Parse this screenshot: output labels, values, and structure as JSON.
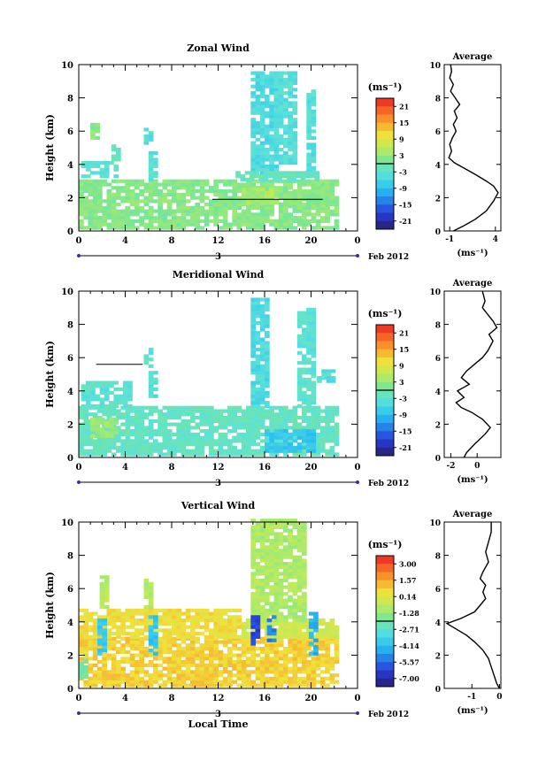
{
  "chart_data": [
    {
      "type": "heatmap",
      "title": "Zonal Wind",
      "ylabel": "Height (km)",
      "xlim": [
        0,
        24
      ],
      "ylim": [
        0,
        10
      ],
      "x_ticks": [
        "0",
        "4",
        "8",
        "12",
        "16",
        "20",
        "0"
      ],
      "y_ticks": [
        "0",
        "2",
        "4",
        "6",
        "8",
        "10"
      ],
      "date_label": "3",
      "month_label": "Feb 2012",
      "colorbar": {
        "unit": "(ms⁻¹)",
        "ticks": [
          "21",
          "15",
          "9",
          "3",
          "-3",
          "-9",
          "-15",
          "-21"
        ],
        "range": [
          -24,
          24
        ]
      },
      "patches": [
        {
          "x0": 0,
          "x1": 22,
          "y0": 0.1,
          "y1": 3.0,
          "v": 2
        },
        {
          "x0": 0.2,
          "x1": 3,
          "y0": 3.2,
          "y1": 4.2,
          "v": -3
        },
        {
          "x0": 1,
          "x1": 1.6,
          "y0": 5.5,
          "y1": 6.5,
          "v": 2
        },
        {
          "x0": 2.8,
          "x1": 3.2,
          "y0": 4.2,
          "y1": 5.2,
          "v": -2
        },
        {
          "x0": 5.6,
          "x1": 6.2,
          "y0": 5.2,
          "y1": 6.2,
          "v": -4
        },
        {
          "x0": 6.0,
          "x1": 6.8,
          "y0": 3.0,
          "y1": 4.8,
          "v": -3
        },
        {
          "x0": 14.8,
          "x1": 16.8,
          "y0": 3.4,
          "y1": 9.5,
          "v": -5
        },
        {
          "x0": 16.8,
          "x1": 18.6,
          "y0": 4.0,
          "y1": 9.5,
          "v": -4
        },
        {
          "x0": 19.6,
          "x1": 20.4,
          "y0": 3.5,
          "y1": 8.5,
          "v": -4
        },
        {
          "x0": 14.0,
          "x1": 17.0,
          "y0": 1.6,
          "y1": 2.6,
          "v": 4
        },
        {
          "x0": 18.0,
          "x1": 21.0,
          "y0": 1.4,
          "y1": 2.4,
          "v": 2
        },
        {
          "x0": 13.5,
          "x1": 20.5,
          "y0": 3.0,
          "y1": 3.6,
          "v": -2
        }
      ],
      "contour": {
        "x0": 11.5,
        "x1": 21.0,
        "y": 1.9
      },
      "avg_profile": {
        "title": "Average",
        "xlabel": "(ms⁻¹)",
        "x_ticks": [
          "-1",
          "4"
        ],
        "xlim": [
          -1.6,
          4.6
        ],
        "y_ticks": [
          "0",
          "2",
          "4",
          "6",
          "8",
          "10"
        ],
        "points": [
          [
            -0.6,
            0
          ],
          [
            0.5,
            0.3
          ],
          [
            1.8,
            0.7
          ],
          [
            3.0,
            1.2
          ],
          [
            3.8,
            1.8
          ],
          [
            4.3,
            2.3
          ],
          [
            3.8,
            2.7
          ],
          [
            3.0,
            3.0
          ],
          [
            1.8,
            3.4
          ],
          [
            0.5,
            3.8
          ],
          [
            -0.5,
            4.1
          ],
          [
            -1.1,
            4.4
          ],
          [
            -0.8,
            4.8
          ],
          [
            -1.0,
            5.2
          ],
          [
            -0.7,
            5.6
          ],
          [
            -0.3,
            6.0
          ],
          [
            -0.6,
            6.4
          ],
          [
            -0.2,
            6.8
          ],
          [
            -0.5,
            7.2
          ],
          [
            0.1,
            7.6
          ],
          [
            -0.4,
            8.0
          ],
          [
            -0.9,
            8.4
          ],
          [
            -0.6,
            8.8
          ],
          [
            -1.0,
            9.2
          ],
          [
            -0.8,
            9.6
          ],
          [
            -0.9,
            10
          ]
        ]
      }
    },
    {
      "type": "heatmap",
      "title": "Meridional Wind",
      "ylabel": "Height (km)",
      "xlim": [
        0,
        24
      ],
      "ylim": [
        0,
        10
      ],
      "x_ticks": [
        "0",
        "4",
        "8",
        "12",
        "16",
        "20",
        "0"
      ],
      "y_ticks": [
        "0",
        "2",
        "4",
        "6",
        "8",
        "10"
      ],
      "date_label": "3",
      "month_label": "Feb 2012",
      "colorbar": {
        "unit": "(ms⁻¹)",
        "ticks": [
          "21",
          "15",
          "9",
          "3",
          "-3",
          "-9",
          "-15",
          "-21"
        ],
        "range": [
          -24,
          24
        ]
      },
      "patches": [
        {
          "x0": 0,
          "x1": 22,
          "y0": 0.1,
          "y1": 3.0,
          "v": -2
        },
        {
          "x0": 0.2,
          "x1": 4.5,
          "y0": 3.0,
          "y1": 4.6,
          "v": -3
        },
        {
          "x0": 5.6,
          "x1": 6.2,
          "y0": 5.4,
          "y1": 6.6,
          "v": -3
        },
        {
          "x0": 6.0,
          "x1": 6.8,
          "y0": 3.6,
          "y1": 5.2,
          "v": -4
        },
        {
          "x0": 14.8,
          "x1": 16.4,
          "y0": 3.0,
          "y1": 9.5,
          "v": -5
        },
        {
          "x0": 18.8,
          "x1": 20.2,
          "y0": 3.0,
          "y1": 9.0,
          "v": -3
        },
        {
          "x0": 16.0,
          "x1": 20.0,
          "y0": 0.3,
          "y1": 1.5,
          "v": -8
        },
        {
          "x0": 1.0,
          "x1": 3.0,
          "y0": 1.2,
          "y1": 2.2,
          "v": 3
        },
        {
          "x0": 20.5,
          "x1": 22,
          "y0": 4.5,
          "y1": 5.2,
          "v": -4
        }
      ],
      "contour": {
        "x0": 1.5,
        "x1": 5.5,
        "y": 5.6
      },
      "avg_profile": {
        "title": "Average",
        "xlabel": "(ms⁻¹)",
        "x_ticks": [
          "-2",
          "0"
        ],
        "xlim": [
          -2.5,
          1.8
        ],
        "y_ticks": [
          "0",
          "2",
          "4",
          "6",
          "8",
          "10"
        ],
        "points": [
          [
            -1.0,
            0
          ],
          [
            -0.8,
            0.3
          ],
          [
            -0.2,
            0.8
          ],
          [
            0.6,
            1.4
          ],
          [
            1.0,
            1.8
          ],
          [
            0.4,
            2.3
          ],
          [
            -0.4,
            2.7
          ],
          [
            -1.2,
            3.0
          ],
          [
            -1.6,
            3.3
          ],
          [
            -1.0,
            3.6
          ],
          [
            -1.5,
            4.0
          ],
          [
            -0.6,
            4.4
          ],
          [
            -1.2,
            4.8
          ],
          [
            -0.8,
            5.2
          ],
          [
            -0.2,
            5.6
          ],
          [
            0.4,
            6.0
          ],
          [
            0.8,
            6.4
          ],
          [
            1.2,
            7.0
          ],
          [
            0.9,
            7.4
          ],
          [
            1.5,
            7.8
          ],
          [
            1.2,
            8.2
          ],
          [
            0.8,
            8.6
          ],
          [
            0.4,
            9.0
          ],
          [
            0.6,
            9.4
          ],
          [
            0.4,
            10
          ]
        ]
      }
    },
    {
      "type": "heatmap",
      "title": "Vertical Wind",
      "ylabel": "Height (km)",
      "xlabel": "Local Time",
      "xlim": [
        0,
        24
      ],
      "ylim": [
        0,
        10
      ],
      "x_ticks": [
        "0",
        "4",
        "8",
        "12",
        "16",
        "20",
        "0"
      ],
      "y_ticks": [
        "0",
        "2",
        "4",
        "6",
        "8",
        "10"
      ],
      "date_label": "3",
      "month_label": "Feb 2012",
      "colorbar": {
        "unit": "(ms⁻¹)",
        "ticks": [
          "3.00",
          "1.57",
          "0.14",
          "-1.28",
          "-2.71",
          "-4.14",
          "-5.57",
          "-7.00"
        ],
        "range": [
          -7.7,
          3.7
        ]
      },
      "patches": [
        {
          "x0": 0,
          "x1": 22,
          "y0": 0.1,
          "y1": 3.0,
          "v": 0.8
        },
        {
          "x0": 0,
          "x1": 14,
          "y0": 3.0,
          "y1": 4.8,
          "v": 0.5
        },
        {
          "x0": 14.0,
          "x1": 22,
          "y0": 3.0,
          "y1": 4.2,
          "v": -0.3
        },
        {
          "x0": 14.8,
          "x1": 19.5,
          "y0": 4.0,
          "y1": 10,
          "v": -0.9
        },
        {
          "x0": 1.8,
          "x1": 2.4,
          "y0": 4.8,
          "y1": 6.8,
          "v": -0.7
        },
        {
          "x0": 5.6,
          "x1": 6.2,
          "y0": 4.8,
          "y1": 6.5,
          "v": -0.8
        },
        {
          "x0": 1.6,
          "x1": 2.2,
          "y0": 2.0,
          "y1": 4.4,
          "v": -3.8
        },
        {
          "x0": 6.0,
          "x1": 6.6,
          "y0": 2.0,
          "y1": 4.4,
          "v": -4.0
        },
        {
          "x0": 14.8,
          "x1": 15.4,
          "y0": 2.6,
          "y1": 4.4,
          "v": -6.3
        },
        {
          "x0": 16.2,
          "x1": 16.8,
          "y0": 2.8,
          "y1": 4.4,
          "v": -5.2
        },
        {
          "x0": 19.8,
          "x1": 20.4,
          "y0": 2.0,
          "y1": 4.5,
          "v": -4.4
        },
        {
          "x0": 0,
          "x1": 0.5,
          "y0": 0.6,
          "y1": 1.6,
          "v": -2.0
        }
      ],
      "contour": null,
      "avg_profile": {
        "title": "Average",
        "xlabel": "(ms⁻¹)",
        "x_ticks": [
          "-1",
          "0"
        ],
        "xlim": [
          -2.0,
          0.05
        ],
        "y_ticks": [
          "0",
          "2",
          "4",
          "6",
          "8",
          "10"
        ],
        "points": [
          [
            0.0,
            0
          ],
          [
            -0.1,
            0.3
          ],
          [
            -0.2,
            0.8
          ],
          [
            -0.3,
            1.3
          ],
          [
            -0.4,
            1.8
          ],
          [
            -0.6,
            2.3
          ],
          [
            -0.9,
            2.8
          ],
          [
            -1.2,
            3.2
          ],
          [
            -1.6,
            3.6
          ],
          [
            -1.9,
            3.9
          ],
          [
            -1.4,
            4.2
          ],
          [
            -0.9,
            4.6
          ],
          [
            -0.7,
            5.0
          ],
          [
            -0.5,
            5.4
          ],
          [
            -0.6,
            5.8
          ],
          [
            -0.5,
            6.2
          ],
          [
            -0.7,
            6.6
          ],
          [
            -0.6,
            7.0
          ],
          [
            -0.4,
            7.6
          ],
          [
            -0.5,
            8.2
          ],
          [
            -0.4,
            8.8
          ],
          [
            -0.3,
            9.4
          ],
          [
            -0.3,
            10
          ]
        ]
      }
    }
  ]
}
